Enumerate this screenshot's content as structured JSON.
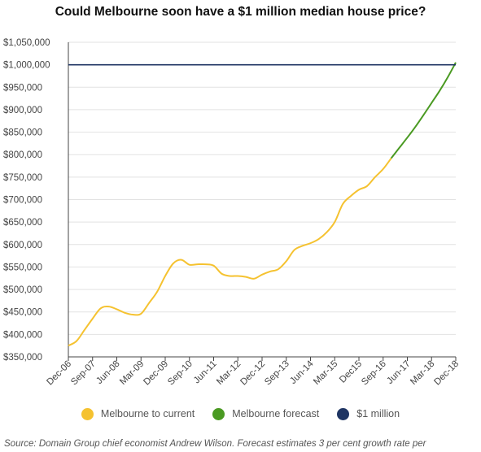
{
  "colors": {
    "current": "#f5c230",
    "forecast": "#4a9a22",
    "million": "#1f3563",
    "grid": "#e2e2e2",
    "axis": "#444444"
  },
  "source": "Source: Domain Group chief economist Andrew Wilson. Forecast estimates 3 per cent growth rate per",
  "chart_data": {
    "type": "line",
    "title": "Could Melbourne soon have a $1 million median house price?",
    "xlabel": "",
    "ylabel": "",
    "ylim": [
      350000,
      1050000
    ],
    "grid": "horizontal",
    "legend_position": "bottom",
    "y_ticks": [
      350000,
      400000,
      450000,
      500000,
      550000,
      600000,
      650000,
      700000,
      750000,
      800000,
      850000,
      900000,
      950000,
      1000000,
      1050000
    ],
    "y_tick_labels": [
      "$350,000",
      "$400,000",
      "$450,000",
      "$500,000",
      "$550,000",
      "$600,000",
      "$650,000",
      "$700,000",
      "$750,000",
      "$800,000",
      "$850,000",
      "$900,000",
      "$950,000",
      "$1,000,000",
      "$1,050,000"
    ],
    "x_tick_labels": [
      "Dec-06",
      "Sep-07",
      "Jun-08",
      "Mar-09",
      "Dec-09",
      "Sep-10",
      "Jun-11",
      "Mar-12",
      "Dec-12",
      "Sep-13",
      "Jun-14",
      "Mar-15",
      "Dec15",
      "Sep-16",
      "Jun-17",
      "Mar-18",
      "Dec-18"
    ],
    "series": [
      {
        "name": "Melbourne to current",
        "color": "#f5c230",
        "points": [
          [
            "Dec-06",
            375000
          ],
          [
            "Mar-07",
            385000
          ],
          [
            "Jun-07",
            410000
          ],
          [
            "Sep-07",
            435000
          ],
          [
            "Dec-07",
            458000
          ],
          [
            "Mar-08",
            462000
          ],
          [
            "Jun-08",
            456000
          ],
          [
            "Sep-08",
            448000
          ],
          [
            "Dec-08",
            444000
          ],
          [
            "Mar-09",
            446000
          ],
          [
            "Jun-09",
            470000
          ],
          [
            "Sep-09",
            495000
          ],
          [
            "Dec-09",
            530000
          ],
          [
            "Mar-10",
            558000
          ],
          [
            "Jun-10",
            566000
          ],
          [
            "Sep-10",
            555000
          ],
          [
            "Dec-10",
            556000
          ],
          [
            "Mar-11",
            556000
          ],
          [
            "Jun-11",
            553000
          ],
          [
            "Sep-11",
            535000
          ],
          [
            "Dec-11",
            530000
          ],
          [
            "Mar-12",
            530000
          ],
          [
            "Jun-12",
            528000
          ],
          [
            "Sep-12",
            524000
          ],
          [
            "Dec-12",
            533000
          ],
          [
            "Mar-13",
            540000
          ],
          [
            "Jun-13",
            545000
          ],
          [
            "Sep-13",
            563000
          ],
          [
            "Dec-13",
            588000
          ],
          [
            "Mar-14",
            597000
          ],
          [
            "Jun-14",
            603000
          ],
          [
            "Sep-14",
            612000
          ],
          [
            "Dec-14",
            627000
          ],
          [
            "Mar-15",
            650000
          ],
          [
            "Jun-15",
            690000
          ],
          [
            "Sep-15",
            708000
          ],
          [
            "Dec-15",
            722000
          ],
          [
            "Mar-16",
            730000
          ],
          [
            "Jun-16",
            750000
          ],
          [
            "Sep-16",
            768000
          ],
          [
            "Dec-16",
            792000
          ]
        ]
      },
      {
        "name": "Melbourne forecast",
        "color": "#4a9a22",
        "points": [
          [
            "Dec-16",
            792000
          ],
          [
            "Mar-17",
            815000
          ],
          [
            "Jun-17",
            838000
          ],
          [
            "Sep-17",
            862000
          ],
          [
            "Dec-17",
            888000
          ],
          [
            "Mar-18",
            915000
          ],
          [
            "Jun-18",
            942000
          ],
          [
            "Sep-18",
            972000
          ],
          [
            "Dec-18",
            1005000
          ]
        ]
      },
      {
        "name": "$1 million",
        "color": "#1f3563",
        "points": [
          [
            "Dec-06",
            1000000
          ],
          [
            "Dec-18",
            1000000
          ]
        ]
      }
    ]
  }
}
